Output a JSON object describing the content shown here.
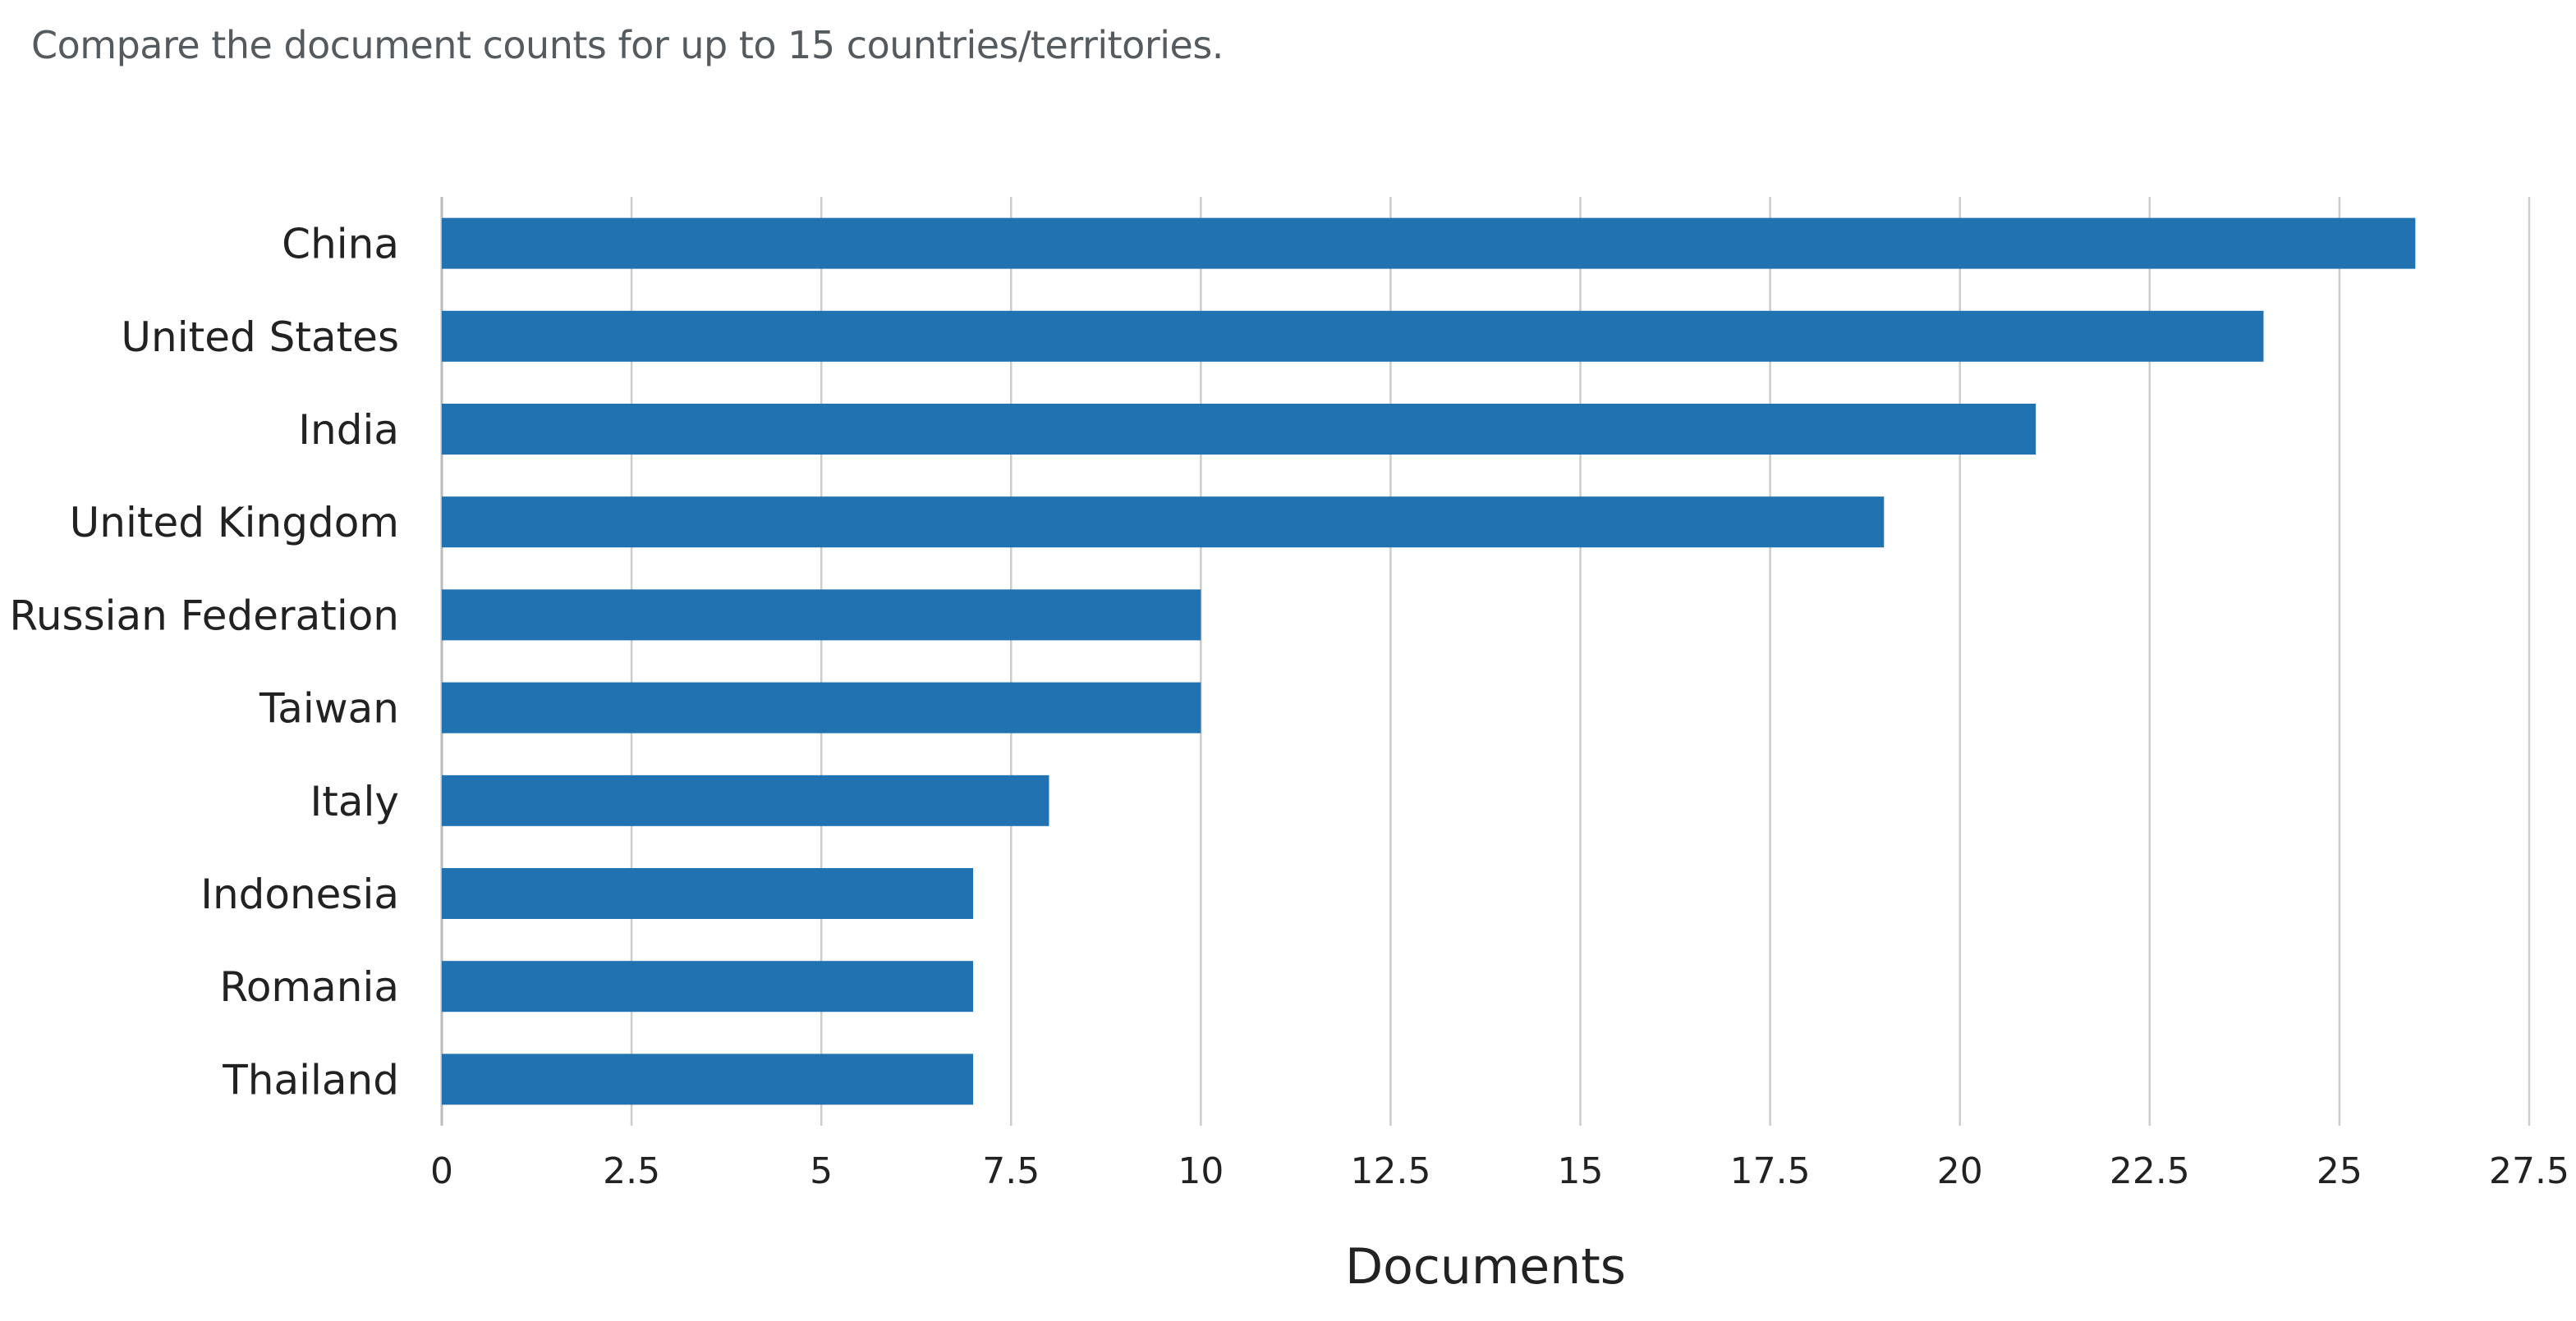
{
  "header": {
    "subtitle": "Compare the document counts for up to 15 countries/territories."
  },
  "chart_data": {
    "type": "bar",
    "orientation": "horizontal",
    "categories": [
      "China",
      "United States",
      "India",
      "United Kingdom",
      "Russian Federation",
      "Taiwan",
      "Italy",
      "Indonesia",
      "Romania",
      "Thailand"
    ],
    "values": [
      26,
      24,
      21,
      19,
      10,
      10,
      8,
      7,
      7,
      7
    ],
    "xlabel": "Documents",
    "ylabel": "",
    "xlim": [
      0,
      27.5
    ],
    "xticks": [
      "0",
      "2.5",
      "5",
      "7.5",
      "10",
      "12.5",
      "15",
      "17.5",
      "20",
      "22.5",
      "25",
      "27.5"
    ],
    "grid": "vertical",
    "legend": "none",
    "bar_color": "#2172b1",
    "grid_color": "#cccccc"
  }
}
